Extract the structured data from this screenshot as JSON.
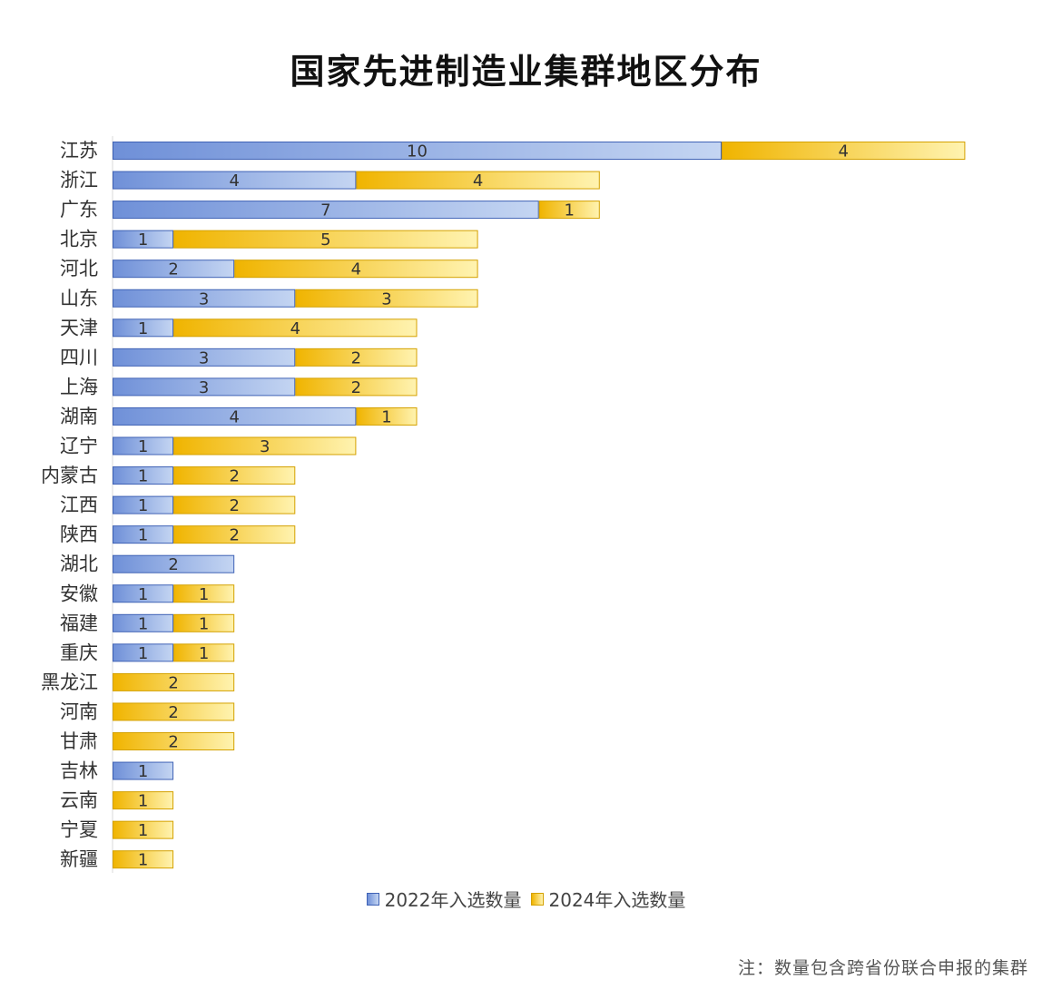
{
  "chart_data": {
    "type": "bar",
    "orientation": "horizontal",
    "stacked": true,
    "title": "国家先进制造业集群地区分布",
    "categories": [
      "江苏",
      "浙江",
      "广东",
      "北京",
      "河北",
      "山东",
      "天津",
      "四川",
      "上海",
      "湖南",
      "辽宁",
      "内蒙古",
      "江西",
      "陕西",
      "湖北",
      "安徽",
      "福建",
      "重庆",
      "黑龙江",
      "河南",
      "甘肃",
      "吉林",
      "云南",
      "宁夏",
      "新疆"
    ],
    "series": [
      {
        "name": "2022年入选数量",
        "color": "#7b9ad8",
        "values": [
          10,
          4,
          7,
          1,
          2,
          3,
          1,
          3,
          3,
          4,
          1,
          1,
          1,
          1,
          2,
          1,
          1,
          1,
          0,
          0,
          0,
          1,
          0,
          0,
          0
        ]
      },
      {
        "name": "2024年入选数量",
        "color": "#f2b800",
        "values": [
          4,
          4,
          1,
          5,
          4,
          3,
          4,
          2,
          2,
          1,
          3,
          2,
          2,
          2,
          0,
          1,
          1,
          1,
          2,
          2,
          2,
          0,
          1,
          1,
          1
        ]
      }
    ],
    "xlim": [
      0,
      14
    ],
    "grid": false,
    "legend": "bottom",
    "note": "注：数量包含跨省份联合申报的集群"
  }
}
